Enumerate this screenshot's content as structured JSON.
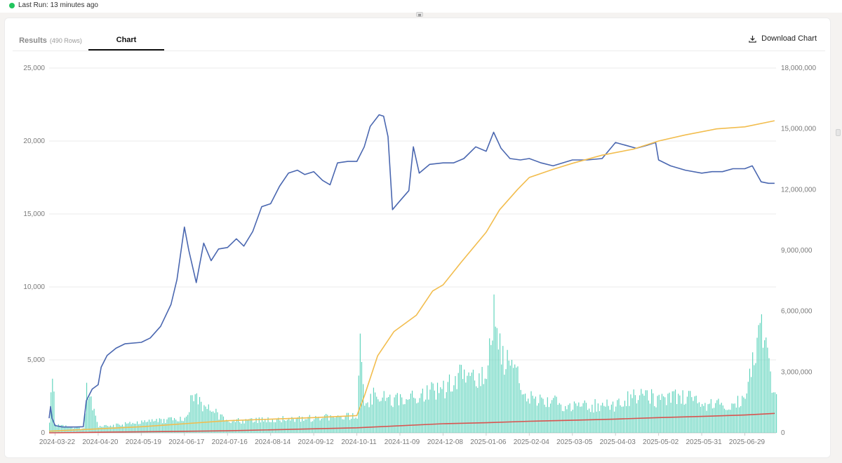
{
  "status": {
    "text": "Last Run: 13 minutes ago",
    "color": "#22c55e"
  },
  "tabs": {
    "results_label": "Results",
    "results_rows": "(490 Rows)",
    "chart_label": "Chart"
  },
  "download_label": "Download Chart",
  "icons": {
    "status": "status-dot-icon",
    "download": "download-icon",
    "drag": "drag-handle-icon"
  },
  "chart_data": {
    "type": "line",
    "title": "",
    "x_type": "date",
    "x_range": [
      "2024-03-18",
      "2025-07-20"
    ],
    "x_ticks": [
      "2024-03-22",
      "2024-04-20",
      "2024-05-19",
      "2024-06-17",
      "2024-07-16",
      "2024-08-14",
      "2024-09-12",
      "2024-10-11",
      "2024-11-09",
      "2024-12-08",
      "2025-01-06",
      "2025-02-04",
      "2025-03-05",
      "2025-04-03",
      "2025-05-02",
      "2025-05-31",
      "2025-06-29"
    ],
    "y_left": {
      "ylim": [
        0,
        25000
      ],
      "ticks": [
        "0",
        "5,000",
        "10,000",
        "15,000",
        "20,000",
        "25,000"
      ]
    },
    "y_right": {
      "ylim": [
        0,
        18000000
      ],
      "ticks": [
        "0",
        "3,000,000",
        "6,000,000",
        "9,000,000",
        "12,000,000",
        "15,000,000",
        "18,000,000"
      ]
    },
    "grid": true,
    "legend": "none",
    "series": [
      {
        "type": "line",
        "axis": "left",
        "color": "#4a67b0",
        "points": [
          [
            "2024-03-18",
            1000
          ],
          [
            "2024-03-19",
            1800
          ],
          [
            "2024-03-20",
            1000
          ],
          [
            "2024-03-22",
            500
          ],
          [
            "2024-03-27",
            400
          ],
          [
            "2024-04-05",
            400
          ],
          [
            "2024-04-10",
            420
          ],
          [
            "2024-04-12",
            2200
          ],
          [
            "2024-04-16",
            3000
          ],
          [
            "2024-04-20",
            3300
          ],
          [
            "2024-04-22",
            4500
          ],
          [
            "2024-04-26",
            5300
          ],
          [
            "2024-05-02",
            5800
          ],
          [
            "2024-05-08",
            6100
          ],
          [
            "2024-05-19",
            6200
          ],
          [
            "2024-05-25",
            6500
          ],
          [
            "2024-06-01",
            7300
          ],
          [
            "2024-06-08",
            8800
          ],
          [
            "2024-06-12",
            10500
          ],
          [
            "2024-06-17",
            14100
          ],
          [
            "2024-06-20",
            12500
          ],
          [
            "2024-06-25",
            10300
          ],
          [
            "2024-06-30",
            13000
          ],
          [
            "2024-07-05",
            11800
          ],
          [
            "2024-07-10",
            12600
          ],
          [
            "2024-07-16",
            12700
          ],
          [
            "2024-07-22",
            13300
          ],
          [
            "2024-07-27",
            12800
          ],
          [
            "2024-08-02",
            13800
          ],
          [
            "2024-08-08",
            15500
          ],
          [
            "2024-08-14",
            15700
          ],
          [
            "2024-08-20",
            16900
          ],
          [
            "2024-08-26",
            17800
          ],
          [
            "2024-09-01",
            18000
          ],
          [
            "2024-09-06",
            17700
          ],
          [
            "2024-09-12",
            17900
          ],
          [
            "2024-09-18",
            17300
          ],
          [
            "2024-09-23",
            17000
          ],
          [
            "2024-09-28",
            18500
          ],
          [
            "2024-10-05",
            18600
          ],
          [
            "2024-10-11",
            18600
          ],
          [
            "2024-10-16",
            19600
          ],
          [
            "2024-10-20",
            21000
          ],
          [
            "2024-10-26",
            21800
          ],
          [
            "2024-10-29",
            21700
          ],
          [
            "2024-11-01",
            20300
          ],
          [
            "2024-11-04",
            15300
          ],
          [
            "2024-11-09",
            15900
          ],
          [
            "2024-11-15",
            16600
          ],
          [
            "2024-11-18",
            19600
          ],
          [
            "2024-11-22",
            17800
          ],
          [
            "2024-11-29",
            18400
          ],
          [
            "2024-12-08",
            18500
          ],
          [
            "2024-12-15",
            18500
          ],
          [
            "2024-12-22",
            18800
          ],
          [
            "2024-12-30",
            19600
          ],
          [
            "2025-01-06",
            19300
          ],
          [
            "2025-01-11",
            20600
          ],
          [
            "2025-01-16",
            19500
          ],
          [
            "2025-01-22",
            18800
          ],
          [
            "2025-01-29",
            18700
          ],
          [
            "2025-02-04",
            18800
          ],
          [
            "2025-02-12",
            18500
          ],
          [
            "2025-02-20",
            18300
          ],
          [
            "2025-03-05",
            18700
          ],
          [
            "2025-03-15",
            18700
          ],
          [
            "2025-03-25",
            18800
          ],
          [
            "2025-04-03",
            19900
          ],
          [
            "2025-04-10",
            19700
          ],
          [
            "2025-04-17",
            19500
          ],
          [
            "2025-04-24",
            19700
          ],
          [
            "2025-04-30",
            19900
          ],
          [
            "2025-05-02",
            18700
          ],
          [
            "2025-05-10",
            18300
          ],
          [
            "2025-05-20",
            18000
          ],
          [
            "2025-05-31",
            17800
          ],
          [
            "2025-06-07",
            17900
          ],
          [
            "2025-06-14",
            17900
          ],
          [
            "2025-06-21",
            18100
          ],
          [
            "2025-06-29",
            18100
          ],
          [
            "2025-07-04",
            18300
          ],
          [
            "2025-07-10",
            17200
          ],
          [
            "2025-07-15",
            17100
          ],
          [
            "2025-07-19",
            17100
          ]
        ]
      },
      {
        "type": "line",
        "axis": "right",
        "color": "#f2bd4e",
        "points": [
          [
            "2024-03-18",
            80000
          ],
          [
            "2024-05-19",
            300000
          ],
          [
            "2024-07-16",
            600000
          ],
          [
            "2024-09-12",
            750000
          ],
          [
            "2024-10-11",
            850000
          ],
          [
            "2024-10-16",
            1800000
          ],
          [
            "2024-10-25",
            3800000
          ],
          [
            "2024-11-05",
            5000000
          ],
          [
            "2024-11-20",
            5800000
          ],
          [
            "2024-12-01",
            7000000
          ],
          [
            "2024-12-08",
            7300000
          ],
          [
            "2024-12-20",
            8400000
          ],
          [
            "2025-01-06",
            9900000
          ],
          [
            "2025-01-15",
            11000000
          ],
          [
            "2025-01-27",
            12000000
          ],
          [
            "2025-02-04",
            12600000
          ],
          [
            "2025-02-20",
            13000000
          ],
          [
            "2025-03-05",
            13300000
          ],
          [
            "2025-03-25",
            13700000
          ],
          [
            "2025-04-15",
            14000000
          ],
          [
            "2025-05-02",
            14400000
          ],
          [
            "2025-05-20",
            14700000
          ],
          [
            "2025-06-10",
            15000000
          ],
          [
            "2025-06-29",
            15100000
          ],
          [
            "2025-07-19",
            15400000
          ]
        ]
      },
      {
        "type": "line",
        "axis": "right",
        "color": "#d9534f",
        "points": [
          [
            "2024-03-18",
            0
          ],
          [
            "2024-07-16",
            100000
          ],
          [
            "2024-10-11",
            250000
          ],
          [
            "2024-12-08",
            450000
          ],
          [
            "2025-01-06",
            500000
          ],
          [
            "2025-02-04",
            570000
          ],
          [
            "2025-03-05",
            620000
          ],
          [
            "2025-04-03",
            680000
          ],
          [
            "2025-05-02",
            750000
          ],
          [
            "2025-05-31",
            810000
          ],
          [
            "2025-06-29",
            880000
          ],
          [
            "2025-07-19",
            960000
          ]
        ]
      },
      {
        "type": "bar",
        "axis": "left",
        "color": "#5ed3bc",
        "anchors": [
          [
            "2024-03-18",
            600
          ],
          [
            "2024-03-20",
            4500
          ],
          [
            "2024-03-22",
            500
          ],
          [
            "2024-04-10",
            300
          ],
          [
            "2024-04-12",
            3100
          ],
          [
            "2024-04-20",
            400
          ],
          [
            "2024-05-19",
            700
          ],
          [
            "2024-06-17",
            1000
          ],
          [
            "2024-06-22",
            2400
          ],
          [
            "2024-07-16",
            800
          ],
          [
            "2024-08-14",
            900
          ],
          [
            "2024-09-12",
            1000
          ],
          [
            "2024-10-11",
            1200
          ],
          [
            "2024-10-13",
            5800
          ],
          [
            "2024-10-16",
            1500
          ],
          [
            "2024-10-22",
            2500
          ],
          [
            "2024-11-09",
            2200
          ],
          [
            "2024-12-08",
            3000
          ],
          [
            "2024-12-20",
            4200
          ],
          [
            "2025-01-06",
            3800
          ],
          [
            "2025-01-11",
            8600
          ],
          [
            "2025-01-16",
            5200
          ],
          [
            "2025-02-04",
            2600
          ],
          [
            "2025-03-05",
            1800
          ],
          [
            "2025-04-03",
            1900
          ],
          [
            "2025-04-20",
            2800
          ],
          [
            "2025-05-02",
            2200
          ],
          [
            "2025-05-20",
            2500
          ],
          [
            "2025-05-31",
            1800
          ],
          [
            "2025-06-29",
            2200
          ],
          [
            "2025-07-04",
            4500
          ],
          [
            "2025-07-10",
            7200
          ],
          [
            "2025-07-15",
            4500
          ],
          [
            "2025-07-19",
            2300
          ]
        ]
      }
    ]
  }
}
